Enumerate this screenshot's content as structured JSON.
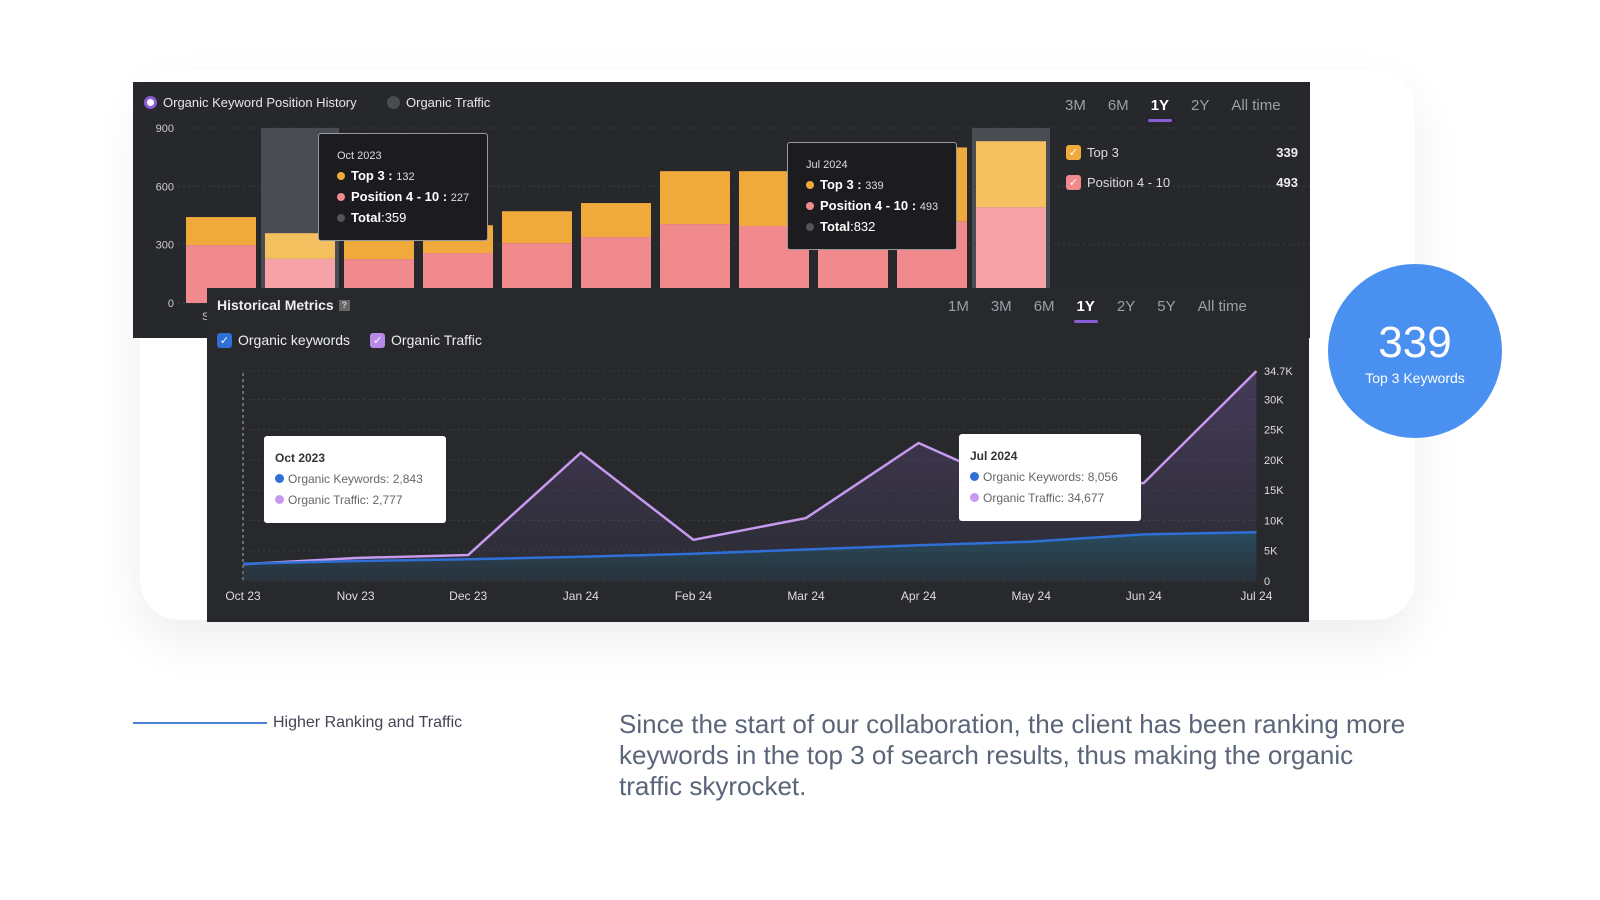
{
  "colors": {
    "top3": "#f0aa3c",
    "pos": "#f08a8c",
    "traffic": "#c79af0",
    "keywords": "#2f6fd6",
    "accent": "#8a5cd6",
    "circle": "#4a90f0"
  },
  "top_panel": {
    "legend": [
      "Organic Keyword Position History",
      "Organic Traffic"
    ],
    "tabs": [
      "3M",
      "6M",
      "1Y",
      "2Y",
      "All time"
    ],
    "active_tab": "1Y",
    "side_legend": [
      {
        "label": "Top 3",
        "value": "339"
      },
      {
        "label": "Position 4 - 10",
        "value": "493"
      }
    ],
    "tooltips": [
      {
        "date": "Oct 2023",
        "top3_label": "Top 3 :",
        "top3": "132",
        "pos_label": "Position 4 - 10 :",
        "pos": "227",
        "total_label": "Total",
        "total": ":359"
      },
      {
        "date": "Jul 2024",
        "top3_label": "Top 3 :",
        "top3": "339",
        "pos_label": "Position 4 - 10 :",
        "pos": "493",
        "total_label": "Total",
        "total": ":832"
      }
    ],
    "first_x_label_fragment": "S"
  },
  "bottom_panel": {
    "title": "Historical Metrics",
    "help_icon": "?",
    "tabs": [
      "1M",
      "3M",
      "6M",
      "1Y",
      "2Y",
      "5Y",
      "All time"
    ],
    "active_tab": "1Y",
    "checkboxes": [
      {
        "label": "Organic keywords",
        "checked": true
      },
      {
        "label": "Organic Traffic",
        "checked": true
      }
    ],
    "tooltips": [
      {
        "date": "Oct 2023",
        "kw": "Organic Keywords: 2,843",
        "tr": "Organic Traffic: 2,777"
      },
      {
        "date": "Jul 2024",
        "kw": "Organic Keywords: 8,056",
        "tr": "Organic Traffic: 34,677"
      }
    ]
  },
  "chart_data": [
    {
      "type": "bar",
      "stacked": true,
      "yticks": [
        "0",
        "300",
        "600",
        "900"
      ],
      "ylim": [
        0,
        900
      ],
      "series": [
        {
          "name": "Position 4 - 10",
          "values": [
            298,
            227,
            226,
            257,
            308,
            339,
            406,
            396,
            390,
            420,
            493
          ]
        },
        {
          "name": "Top 3",
          "values": [
            144,
            132,
            140,
            143,
            164,
            175,
            272,
            282,
            290,
            380,
            339
          ]
        }
      ],
      "highlighted": [
        1,
        10
      ]
    },
    {
      "type": "area",
      "categories": [
        "Oct 23",
        "Nov 23",
        "Dec 23",
        "Jan 24",
        "Feb 24",
        "Mar 24",
        "Apr 24",
        "May 24",
        "Jun 24",
        "Jul 24"
      ],
      "yticks": [
        "0",
        "5K",
        "10K",
        "15K",
        "20K",
        "25K",
        "30K",
        "34.7K"
      ],
      "ylim": [
        0,
        34700
      ],
      "series": [
        {
          "name": "Organic Traffic",
          "values": [
            2777,
            3800,
            4300,
            21200,
            6800,
            10400,
            22800,
            14500,
            16200,
            34677
          ]
        },
        {
          "name": "Organic Keywords",
          "values": [
            2843,
            3300,
            3600,
            4000,
            4500,
            5200,
            5900,
            6500,
            7700,
            8056
          ]
        }
      ]
    }
  ],
  "circle": {
    "value": "339",
    "label": "Top 3 Keywords"
  },
  "caption": {
    "label": "Higher Ranking and Traffic",
    "text": "Since the start of our collaboration, the client has been ranking more keywords in the top 3 of search results, thus making the organic traffic skyrocket."
  }
}
